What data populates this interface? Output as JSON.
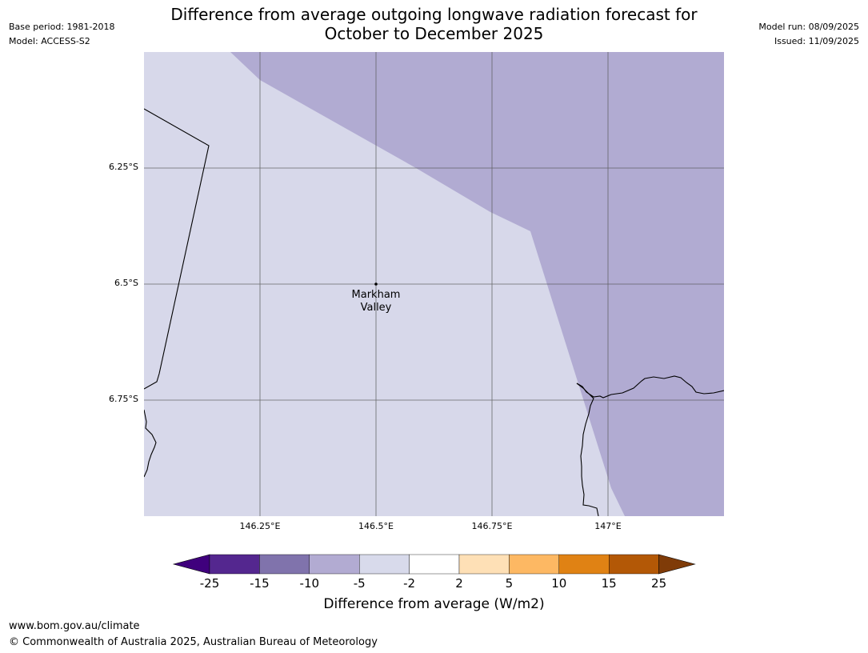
{
  "header": {
    "title_line1": "Difference from average outgoing longwave radiation forecast for",
    "title_line2": "October to December 2025",
    "base_period": "Base period: 1981-2018",
    "model": "Model: ACCESS-S2",
    "model_run": "Model run: 08/09/2025",
    "issued": "Issued: 11/09/2025"
  },
  "map": {
    "lat_ticks": [
      "6.25°S",
      "6.5°S",
      "6.75°S"
    ],
    "lon_ticks": [
      "146.25°E",
      "146.5°E",
      "146.75°E",
      "147°E"
    ],
    "place_label_line1": "Markham",
    "place_label_line2": "Valley",
    "colors": {
      "light_region": "#d7d8ea",
      "dark_region": "#b1abd2",
      "grid": "#555555",
      "coast": "#000000"
    }
  },
  "colorbar": {
    "ticks": [
      "-25",
      "-15",
      "-10",
      "-5",
      "-2",
      "2",
      "5",
      "10",
      "15",
      "25"
    ],
    "colors": [
      "#3f007d",
      "#54278f",
      "#8073ac",
      "#b2abd2",
      "#d8daeb",
      "#ffffff",
      "#fee0b6",
      "#fdb863",
      "#e08214",
      "#b35806",
      "#7f3b08"
    ],
    "label": "Difference from average (W/m2)"
  },
  "footer": {
    "url": "www.bom.gov.au/climate",
    "copyright": "© Commonwealth of Australia 2025, Australian Bureau of Meteorology"
  }
}
